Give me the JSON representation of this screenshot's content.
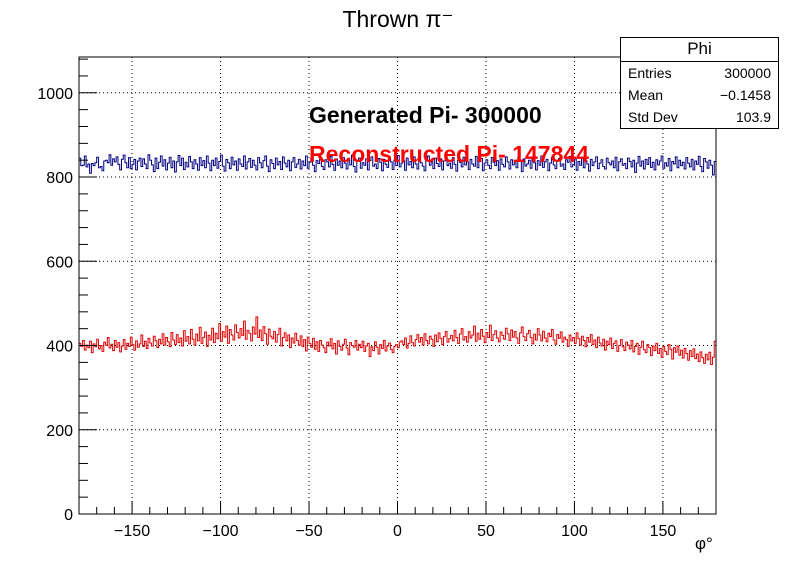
{
  "title": "Thrown π⁻",
  "statbox": {
    "name": "Phi",
    "rows": [
      {
        "key": "Entries",
        "value": "300000"
      },
      {
        "key": "Mean",
        "value": "−0.1458"
      },
      {
        "key": "Std Dev",
        "value": "103.9"
      }
    ]
  },
  "annotations": {
    "generated": "Generated Pi- 300000",
    "reconstructed": "Reconstructed Pi- 147844"
  },
  "colors": {
    "generated": "#000080",
    "reconstructed": "#e00000",
    "generated_text": "#000000",
    "reconstructed_text": "#ff0000"
  },
  "chart_data": {
    "type": "histogram",
    "title": "Thrown π⁻",
    "xlabel": "φ°",
    "ylabel": "",
    "xlim": [
      -180,
      180
    ],
    "ylim": [
      0,
      1085
    ],
    "xticks": [
      -150,
      -100,
      -50,
      0,
      50,
      100,
      150
    ],
    "yticks": [
      0,
      200,
      400,
      600,
      800,
      1000
    ],
    "grid": true,
    "bins": 360,
    "bin_width": 1,
    "series": [
      {
        "name": "Generated Pi- 300000",
        "values": [
          845,
          827,
          828,
          850,
          824,
          831,
          809,
          832,
          827,
          834,
          847,
          822,
          825,
          815,
          838,
          840,
          834,
          853,
          828,
          843,
          836,
          848,
          830,
          817,
          842,
          852,
          834,
          822,
          846,
          820,
          830,
          842,
          817,
          838,
          845,
          825,
          843,
          831,
          820,
          853,
          840,
          829,
          813,
          845,
          820,
          835,
          850,
          826,
          841,
          817,
          833,
          847,
          822,
          838,
          812,
          836,
          851,
          827,
          845,
          818,
          835,
          824,
          849,
          836,
          820,
          841,
          831,
          816,
          846,
          827,
          839,
          822,
          850,
          833,
          815,
          840,
          827,
          845,
          821,
          837,
          852,
          826,
          814,
          842,
          834,
          820,
          847,
          829,
          838,
          816,
          843,
          831,
          825,
          850,
          819,
          836,
          844,
          823,
          840,
          828,
          817,
          846,
          834,
          822,
          839,
          850,
          826,
          813,
          841,
          832,
          820,
          845,
          829,
          837,
          818,
          848,
          833,
          824,
          840,
          815,
          836,
          846,
          823,
          831,
          842,
          819,
          838,
          827,
          850,
          821,
          835,
          844,
          828,
          813,
          839,
          832,
          847,
          825,
          818,
          841,
          836,
          824,
          849,
          830,
          816,
          843,
          828,
          838,
          822,
          846,
          833,
          819,
          840,
          829,
          852,
          825,
          812,
          837,
          845,
          821,
          834,
          828,
          843,
          817,
          839,
          848,
          826,
          831,
          820,
          844,
          835,
          815,
          842,
          830,
          823,
          847,
          836,
          818,
          840,
          827,
          851,
          824,
          833,
          839,
          816,
          845,
          829,
          837,
          822,
          848,
          831,
          819,
          842,
          834,
          826,
          815,
          841,
          850,
          828,
          836,
          820,
          845,
          832,
          825,
          843,
          817,
          838,
          849,
          827,
          833,
          821,
          846,
          830,
          814,
          840,
          835,
          824,
          847,
          829,
          836,
          818,
          842,
          831,
          826,
          849,
          822,
          837,
          844,
          815,
          833,
          841,
          828,
          820,
          846,
          835,
          827,
          839,
          816,
          843,
          830,
          824,
          848,
          836,
          819,
          841,
          829,
          834,
          822,
          847,
          838,
          813,
          843,
          826,
          831,
          840,
          821,
          845,
          834,
          817,
          839,
          828,
          850,
          823,
          836,
          842,
          815,
          833,
          846,
          829,
          820,
          838,
          844,
          826,
          831,
          818,
          841,
          835,
          849,
          824,
          830,
          843,
          816,
          837,
          828,
          846,
          822,
          839,
          831,
          814,
          842,
          827,
          836,
          848,
          820,
          833,
          841,
          825,
          819,
          845,
          834,
          829,
          838,
          822,
          847,
          815,
          836,
          843,
          828,
          832,
          820,
          845,
          837,
          824,
          840,
          811,
          833,
          849,
          826,
          838,
          819,
          842,
          830,
          846,
          823,
          835,
          817,
          841,
          829,
          838,
          850,
          821,
          834,
          826,
          844,
          815,
          837,
          831,
          848,
          822,
          840,
          827,
          835,
          819,
          846,
          833,
          824,
          842,
          817,
          838,
          830,
          849,
          825,
          813,
          844,
          836,
          821,
          840,
          828,
          805,
          837
        ]
      },
      {
        "name": "Reconstructed Pi- 147844",
        "values": [
          405,
          398,
          412,
          389,
          401,
          395,
          410,
          383,
          404,
          397,
          415,
          392,
          400,
          386,
          408,
          401,
          419,
          394,
          403,
          388,
          412,
          396,
          407,
          385,
          399,
          414,
          391,
          405,
          398,
          420,
          402,
          389,
          411,
          396,
          404,
          425,
          398,
          410,
          393,
          417,
          406,
          399,
          422,
          411,
          395,
          415,
          404,
          428,
          401,
          419,
          409,
          397,
          431,
          413,
          402,
          426,
          407,
          418,
          399,
          435,
          410,
          421,
          404,
          438,
          415,
          401,
          427,
          411,
          443,
          405,
          419,
          432,
          398,
          424,
          413,
          441,
          407,
          429,
          416,
          452,
          410,
          433,
          420,
          446,
          405,
          438,
          425,
          413,
          449,
          431,
          418,
          440,
          424,
          458,
          415,
          436,
          429,
          411,
          444,
          427,
          468,
          419,
          437,
          412,
          445,
          428,
          403,
          439,
          422,
          416,
          433,
          408,
          426,
          441,
          399,
          419,
          430,
          411,
          425,
          395,
          418,
          406,
          429,
          412,
          401,
          423,
          398,
          414,
          387,
          420,
          405,
          396,
          417,
          391,
          409,
          386,
          412,
          401,
          395,
          383,
          408,
          399,
          416,
          392,
          405,
          380,
          411,
          398,
          389,
          403,
          415,
          394,
          378,
          407,
          400,
          396,
          412,
          389,
          403,
          395,
          410,
          386,
          399,
          405,
          374,
          397,
          388,
          409,
          396,
          380,
          402,
          393,
          412,
          387,
          399,
          406,
          391,
          383,
          398,
          402,
          395,
          408,
          411,
          402,
          418,
          394,
          405,
          423,
          407,
          399,
          414,
          426,
          408,
          419,
          401,
          428,
          412,
          404,
          422,
          415,
          398,
          425,
          409,
          430,
          417,
          402,
          421,
          433,
          408,
          416,
          424,
          411,
          436,
          419,
          405,
          427,
          440,
          413,
          421,
          408,
          433,
          418,
          425,
          446,
          410,
          429,
          415,
          438,
          422,
          407,
          431,
          419,
          448,
          412,
          426,
          435,
          418,
          409,
          432,
          424,
          415,
          441,
          428,
          412,
          437,
          420,
          433,
          418,
          405,
          430,
          444,
          421,
          412,
          428,
          436,
          419,
          404,
          427,
          413,
          440,
          425,
          411,
          434,
          418,
          409,
          429,
          421,
          438,
          413,
          403,
          426,
          417,
          432,
          408,
          420,
          414,
          398,
          425,
          411,
          419,
          405,
          430,
          416,
          401,
          422,
          412,
          397,
          419,
          408,
          426,
          402,
          413,
          395,
          420,
          406,
          399,
          415,
          389,
          410,
          402,
          418,
          393,
          405,
          411,
          386,
          400,
          414,
          397,
          388,
          408,
          401,
          392,
          412,
          385,
          398,
          405,
          379,
          396,
          410,
          390,
          383,
          402,
          395,
          376,
          399,
          388,
          405,
          381,
          393,
          372,
          398,
          386,
          379,
          402,
          391,
          368,
          395,
          384,
          399,
          377,
          389,
          370,
          393,
          381,
          365,
          388,
          374,
          392,
          369,
          380,
          362,
          385,
          371,
          358,
          379,
          366,
          384,
          355,
          372,
          410
        ]
      }
    ]
  }
}
